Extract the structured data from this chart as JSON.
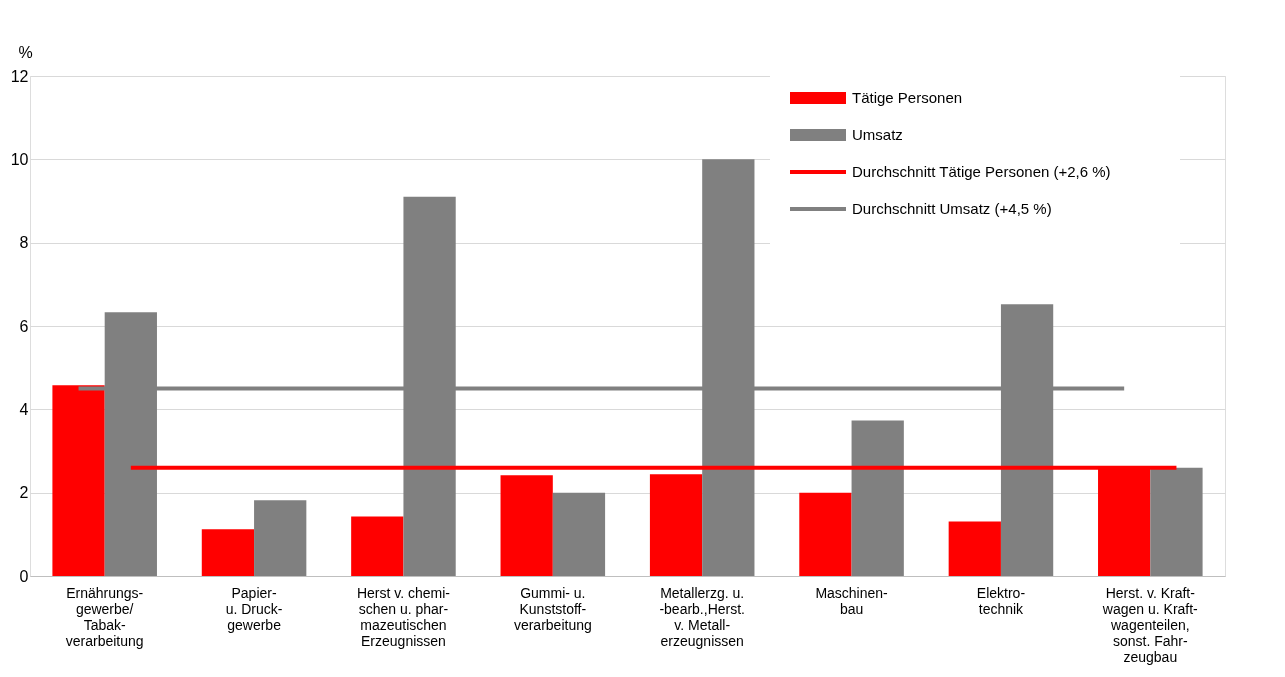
{
  "chart_data": {
    "type": "bar",
    "ylabel": "%",
    "categories": [
      "Ernährungs-\ngewerbe/\nTabak-\nverarbeitung",
      "Papier-\nu. Druck-\ngewerbe",
      "Herst  v. chemi-\nschen u. phar-\nmazeutischen\nErzeugnissen",
      "Gummi- u.\nKunststoff-\nverarbeitung",
      "Metallerzg. u.\n-bearb.,Herst.\nv. Metall-\nerzeugnissen",
      "Maschinen-\nbau",
      "Elektro-\ntechnik",
      "Herst. v. Kraft-\nwagen u. Kraft-\nwagenteilen,\nsonst. Fahr-\nzeugbau"
    ],
    "series": [
      {
        "name": "Tätige Personen",
        "color": "#ff0000",
        "values": [
          4.58,
          1.12,
          1.43,
          2.42,
          2.44,
          2.0,
          1.31,
          2.64
        ]
      },
      {
        "name": "Umsatz",
        "color": "#808080",
        "values": [
          6.33,
          1.82,
          9.1,
          2.0,
          10.0,
          3.73,
          6.52,
          2.6
        ]
      },
      {
        "name": "Durchschnitt Tätige Personen (+2,6 %)",
        "type": "line",
        "color": "#ff0000",
        "values": [
          2.6,
          2.6,
          2.6,
          2.6,
          2.6,
          2.6,
          2.6,
          2.6
        ]
      },
      {
        "name": "Durchschnitt Umsatz (+4,5 %)",
        "type": "line",
        "color": "#808080",
        "values": [
          4.5,
          4.5,
          4.5,
          4.5,
          4.5,
          4.5,
          4.5,
          4.5
        ]
      }
    ],
    "ylim": [
      0,
      12
    ],
    "yticks": [
      0,
      2,
      4,
      6,
      8,
      10,
      12
    ],
    "grid": "y",
    "legend": "top right"
  }
}
